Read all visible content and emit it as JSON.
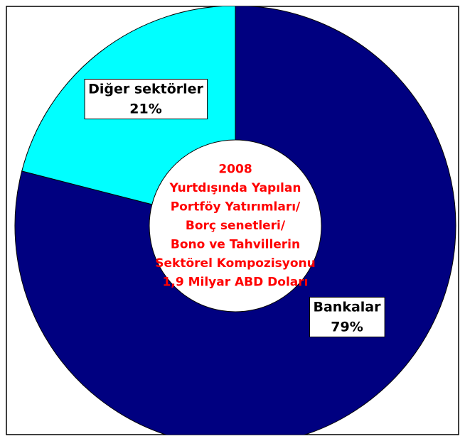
{
  "chart_data": {
    "type": "donut",
    "title": [
      "2008",
      "Yurtdışında Yapılan",
      "Portföy Yatırımları/",
      "Borç senetleri/",
      "Bono ve Tahvillerin",
      "Sektörel Kompozisyonu",
      "1,9 Milyar ABD Doları"
    ],
    "title_color": "#ff0000",
    "categories": [
      "Bankalar",
      "Diğer sektörler"
    ],
    "values": [
      79,
      21
    ],
    "value_labels": [
      "79%",
      "21%"
    ],
    "colors": [
      "#000080",
      "#00ffff"
    ]
  }
}
